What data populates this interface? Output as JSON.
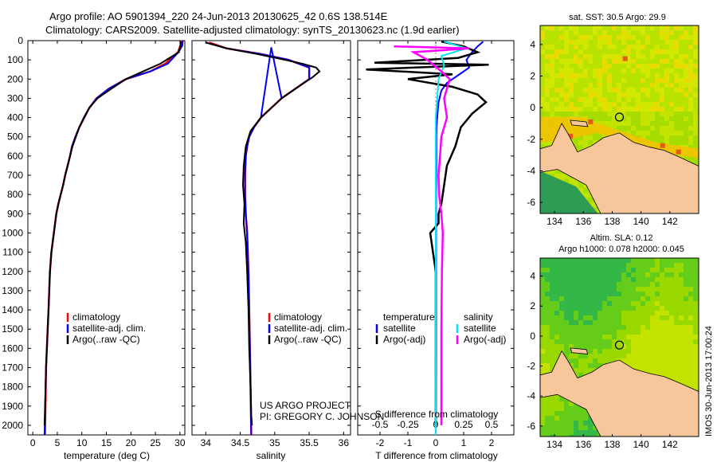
{
  "figure": {
    "title_line1": "Argo profile: AO 5901394_220 24-Jun-2013 20130625_42 0.6S 138.514E",
    "title_line2": "Climatology: CARS2009. Satellite-adjusted climatology: synTS_20130623.nc (1.9d earlier)",
    "project_line1": "US ARGO PROJECT",
    "project_line2": "PI: GREGORY C. JOHNSON",
    "side_stamp": "IMOS 30-Jun-2013 17:00:24"
  },
  "colors": {
    "climatology": "#ff0000",
    "satellite": "#0000ff",
    "argo": "#000000",
    "salinity_satellite": "#00e5ee",
    "salinity_argo": "#ff00ff",
    "land": "#f7c79b",
    "ocean_dark": "#2e9c55",
    "ocean_mid": "#8ed600",
    "ocean_warm": "#f2c200"
  },
  "chart_data": [
    {
      "type": "line",
      "xlabel": "temperature (deg C)",
      "xlim": [
        -1,
        31
      ],
      "xticks": [
        0,
        5,
        10,
        15,
        20,
        25,
        30
      ],
      "ylim": [
        2050,
        0
      ],
      "yticks": [
        0,
        100,
        200,
        300,
        400,
        500,
        600,
        700,
        800,
        900,
        1000,
        1100,
        1200,
        1300,
        1400,
        1500,
        1600,
        1700,
        1800,
        1900,
        2000
      ],
      "legend": [
        "climatology",
        "satellite-adj. clim.",
        "Argo(..raw -QC)"
      ],
      "legend_position": "bottom-right",
      "series": [
        {
          "name": "climatology",
          "x": [
            30.3,
            30.1,
            29.6,
            27,
            24,
            19,
            15.5,
            13,
            11.5,
            10.5,
            9.5,
            8.7,
            8,
            7.6,
            7.1,
            6.6,
            6.2,
            5.7,
            5.2,
            4.8,
            4.3,
            3.8,
            3.5,
            3.2,
            2.7,
            2.5
          ],
          "y": [
            0,
            25,
            60,
            120,
            160,
            200,
            250,
            300,
            350,
            400,
            450,
            500,
            550,
            600,
            650,
            700,
            750,
            800,
            850,
            900,
            1000,
            1100,
            1200,
            1400,
            1700,
            2050
          ]
        },
        {
          "name": "satellite-adj. clim.",
          "x": [
            30.6,
            30.5,
            29.7,
            27.5,
            24,
            19,
            15.5,
            13,
            11.5,
            10.5,
            9.5,
            8.7,
            8,
            7.6,
            7.1,
            6.6,
            6.2,
            5.7,
            5.2,
            4.8,
            4.3,
            3.8,
            3.5,
            3.2,
            2.7,
            2.4
          ],
          "y": [
            0,
            25,
            60,
            120,
            160,
            200,
            250,
            300,
            350,
            400,
            450,
            500,
            550,
            600,
            650,
            700,
            750,
            800,
            850,
            900,
            1000,
            1100,
            1200,
            1400,
            1700,
            2050
          ]
        },
        {
          "name": "Argo(..raw -QC)",
          "x": [
            30.2,
            30.1,
            29.8,
            26,
            22.5,
            19,
            16,
            13.2,
            11.5,
            10.4,
            9.5,
            8.8,
            8.1,
            7.6,
            7.1,
            6.6,
            6.2,
            5.7,
            5.2,
            4.8,
            4.3,
            3.8,
            3.5,
            3.2,
            2.7,
            2.4
          ],
          "y": [
            5,
            25,
            60,
            120,
            160,
            200,
            250,
            300,
            350,
            400,
            450,
            500,
            550,
            600,
            650,
            700,
            750,
            800,
            850,
            900,
            1000,
            1100,
            1200,
            1400,
            1700,
            2000
          ]
        }
      ]
    },
    {
      "type": "line",
      "xlabel": "salinity",
      "xlim": [
        33.8,
        36.1
      ],
      "xticks": [
        34,
        34.5,
        35,
        35.5,
        36
      ],
      "ylim": [
        2050,
        0
      ],
      "legend": [
        "climatology",
        "satellite-adj. clim.",
        "Argo(..raw -QC)"
      ],
      "legend_position": "bottom-right",
      "series": [
        {
          "name": "climatology",
          "x": [
            34.05,
            34.3,
            34.8,
            35.2,
            35.5,
            35.5,
            35.3,
            35.1,
            34.95,
            34.8,
            34.7,
            34.63,
            34.6,
            34.58,
            34.57,
            34.57,
            34.58,
            34.6,
            34.62,
            34.63,
            34.64,
            34.65,
            34.66
          ],
          "y": [
            10,
            40,
            70,
            100,
            140,
            200,
            250,
            300,
            350,
            400,
            450,
            500,
            550,
            600,
            700,
            800,
            900,
            1000,
            1200,
            1400,
            1600,
            1800,
            2050
          ]
        },
        {
          "name": "satellite-adj. clim.",
          "x": [
            34.0,
            34.3,
            34.8,
            35.2,
            35.5,
            35.5,
            35.3,
            35.1,
            34.95,
            34.8,
            34.7,
            34.63,
            34.6,
            34.58,
            34.57,
            34.57,
            34.58,
            34.6,
            34.62,
            34.63,
            34.64,
            34.65,
            34.66
          ],
          "y": [
            10,
            40,
            70,
            100,
            140,
            200,
            250,
            300,
            35,
            400,
            450,
            500,
            550,
            600,
            700,
            800,
            900,
            1000,
            1200,
            1400,
            1600,
            1800,
            2050
          ]
        },
        {
          "name": "Argo(..raw -QC)",
          "x": [
            34.0,
            34.3,
            34.75,
            35.15,
            35.4,
            35.6,
            35.65,
            35.55,
            35.3,
            35.1,
            34.95,
            34.8,
            34.65,
            34.58,
            34.55,
            34.54,
            34.56,
            34.55,
            34.58,
            34.6,
            34.62,
            34.63,
            34.65,
            34.66,
            34.67
          ],
          "y": [
            10,
            40,
            70,
            100,
            120,
            140,
            160,
            190,
            250,
            300,
            350,
            400,
            470,
            550,
            650,
            750,
            850,
            950,
            1050,
            1200,
            1400,
            1600,
            1800,
            1950,
            2000
          ]
        }
      ]
    },
    {
      "type": "line",
      "xlabel": "T difference from climatology",
      "xlabel_top": "S difference from climatology",
      "xlim": [
        -2.8,
        2.8
      ],
      "xticks": [
        -2,
        -1,
        0,
        1,
        2
      ],
      "xticks_salinity": [
        -0.5,
        -0.25,
        0,
        0.25,
        0.5
      ],
      "ylim": [
        2050,
        0
      ],
      "legend_temperature_title": "temperature",
      "legend_salinity_title": "salinity",
      "legend": [
        "satellite",
        "Argo(-adj)"
      ],
      "series": [
        {
          "name": "temperature satellite",
          "x": [
            1.7,
            1.5,
            1.3,
            1.1,
            1.2,
            0.8,
            0.4,
            0.2,
            0.1,
            0.05,
            0.03,
            0.02,
            0.02,
            0.02,
            0.01,
            0.01,
            0.01,
            0.01,
            0.0
          ],
          "y": [
            5,
            30,
            60,
            100,
            140,
            180,
            220,
            260,
            320,
            400,
            450,
            500,
            600,
            700,
            800,
            1000,
            1300,
            1600,
            2050
          ]
        },
        {
          "name": "temperature Argo(-adj)",
          "x": [
            0.2,
            1.0,
            1.5,
            0.8,
            -2.2,
            1.9,
            -2.5,
            0.6,
            -1.0,
            0.6,
            1.5,
            1.8,
            1.3,
            0.9,
            0.7,
            0.4,
            0.3,
            0.2,
            0.1,
            0.1,
            -0.2,
            0.0,
            0.0,
            0.0,
            0.0
          ],
          "y": [
            5,
            30,
            60,
            90,
            115,
            125,
            150,
            175,
            200,
            240,
            280,
            320,
            380,
            450,
            550,
            650,
            750,
            850,
            900,
            950,
            1000,
            1200,
            1400,
            1700,
            2000
          ]
        },
        {
          "name": "salinity satellite",
          "x": [
            0.3,
            1.1,
            0.2,
            0.3,
            0.1,
            0.05,
            0.0,
            0.0,
            0.0,
            0.0,
            0.0
          ],
          "y": [
            5,
            40,
            80,
            130,
            200,
            300,
            400,
            600,
            900,
            1400,
            2050
          ]
        },
        {
          "name": "salinity Argo(-adj)",
          "x": [
            -1.5,
            1.2,
            -0.8,
            -0.3,
            0.2,
            0.5,
            0.3,
            0.4,
            0.2,
            0.15,
            0.1,
            0.12,
            0.2,
            0.25,
            0.22,
            0.2,
            0.2,
            0.2
          ],
          "y": [
            30,
            40,
            60,
            100,
            160,
            200,
            300,
            400,
            500,
            600,
            700,
            800,
            900,
            1000,
            1200,
            1500,
            1800,
            2000
          ]
        }
      ]
    },
    {
      "type": "heatmap",
      "title": "sat. SST: 30.5 Argo: 29.9",
      "xticks": [
        134,
        136,
        138,
        140,
        142
      ],
      "yticks": [
        4,
        2,
        0,
        -2,
        -4,
        -6
      ],
      "xlim": [
        133,
        144
      ],
      "ylim": [
        -6.7,
        5.2
      ],
      "argo_position": {
        "lon": 138.5,
        "lat": -0.6
      }
    },
    {
      "type": "heatmap",
      "title_line1": "Altim. SLA: 0.12",
      "title_line2": "Argo h1000: 0.078 h2000: 0.045",
      "xticks": [
        134,
        136,
        138,
        140,
        142
      ],
      "yticks": [
        4,
        2,
        0,
        -2,
        -4,
        -6
      ],
      "xlim": [
        133,
        144
      ],
      "ylim": [
        -6.7,
        5.2
      ],
      "argo_position": {
        "lon": 138.5,
        "lat": -0.6
      }
    }
  ]
}
